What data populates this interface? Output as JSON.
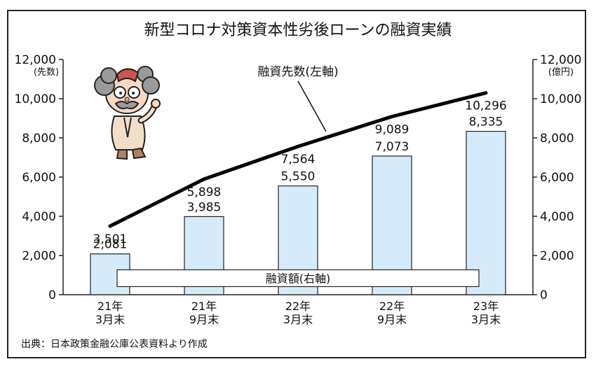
{
  "chart_data": {
    "type": "bar+line",
    "title": "新型コロナ対策資本性劣後ローンの融資実績",
    "categories": [
      [
        "21年",
        "3月末"
      ],
      [
        "21年",
        "9月末"
      ],
      [
        "22年",
        "3月末"
      ],
      [
        "22年",
        "9月末"
      ],
      [
        "23年",
        "3月末"
      ]
    ],
    "series": [
      {
        "name": "融資額(右軸)",
        "kind": "bar",
        "axis": "right",
        "values": [
          2081,
          3985,
          5550,
          7073,
          8335
        ],
        "color": "#d6ebf9"
      },
      {
        "name": "融資先数(左軸)",
        "kind": "line",
        "axis": "left",
        "values": [
          3501,
          5898,
          7564,
          9089,
          10296
        ],
        "color": "#000000"
      }
    ],
    "bar_labels": [
      "2,081",
      "3,985",
      "5,550",
      "7,073",
      "8,335"
    ],
    "line_labels": [
      "3,501",
      "5,898",
      "7,564",
      "9,089",
      "10,296"
    ],
    "left_axis": {
      "unit": "(先数)",
      "ylim": [
        0,
        12000
      ],
      "ticks": [
        "0",
        "2,000",
        "4,000",
        "6,000",
        "8,000",
        "10,000",
        "12,000"
      ]
    },
    "right_axis": {
      "unit": "(億円)",
      "ylim": [
        0,
        12000
      ],
      "ticks": [
        "0",
        "2,000",
        "4,000",
        "6,000",
        "8,000",
        "10,000",
        "12,000"
      ]
    },
    "grid": false
  },
  "source_note": "出典：日本政策金融公庫公表資料より作成"
}
